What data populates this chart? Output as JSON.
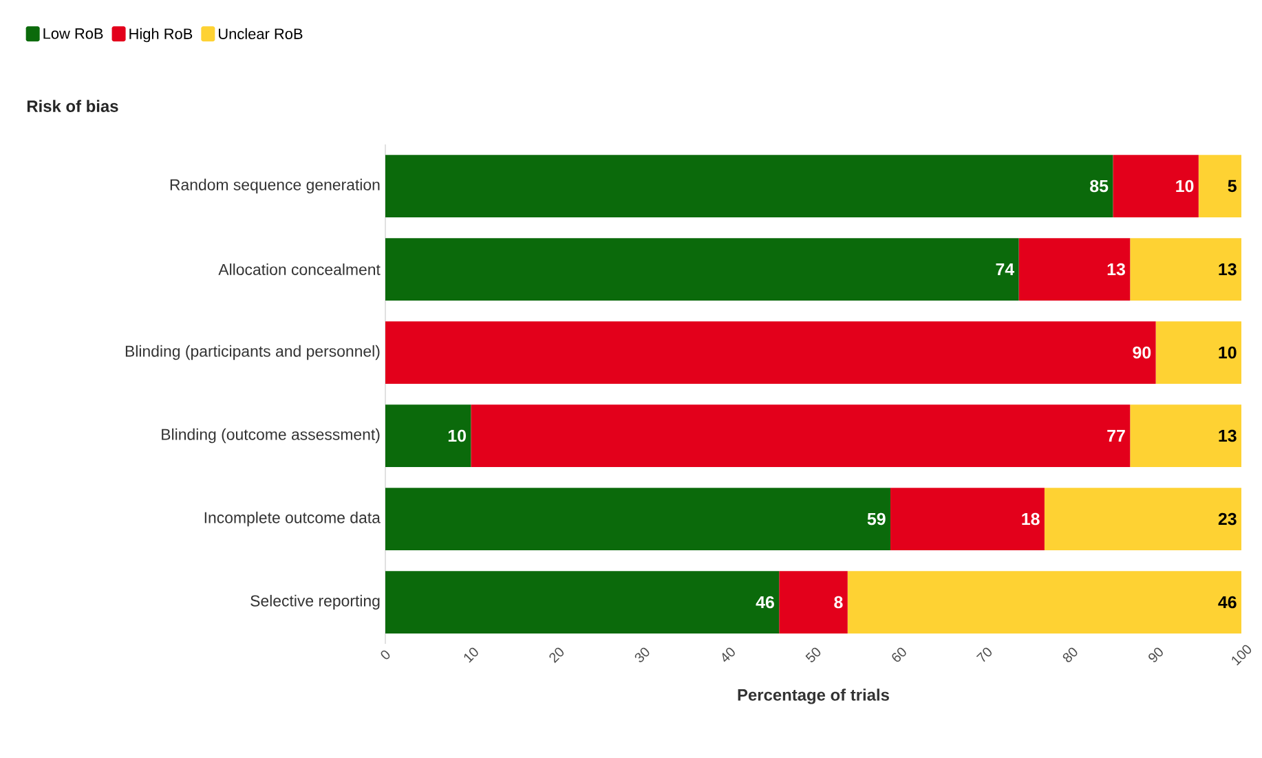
{
  "chart_data": {
    "type": "bar",
    "orientation": "horizontal",
    "stacked": true,
    "title": "Risk of bias",
    "xlabel": "Percentage of trials",
    "categories": [
      "Random sequence generation",
      "Allocation concealment",
      "Blinding (participants and personnel)",
      "Blinding (outcome assessment)",
      "Incomplete outcome data",
      "Selective reporting"
    ],
    "series": [
      {
        "name": "Low RoB",
        "color": "#0b6a0b",
        "values": [
          85,
          74,
          0,
          10,
          59,
          46
        ],
        "value_labels": [
          "85",
          "74",
          null,
          "10",
          "59",
          "46"
        ]
      },
      {
        "name": "High RoB",
        "color": "#e3001b",
        "values": [
          10,
          13,
          90,
          77,
          18,
          8
        ],
        "value_labels": [
          "10",
          "13",
          "90",
          "77",
          "18",
          "8"
        ]
      },
      {
        "name": "Unclear RoB",
        "color": "#fed233",
        "values": [
          5,
          13,
          10,
          13,
          23,
          46
        ],
        "value_labels": [
          "5",
          "13",
          "10",
          "13",
          "23",
          "46"
        ]
      }
    ],
    "xlim": [
      0,
      100
    ],
    "xticks": [
      0,
      10,
      20,
      30,
      40,
      50,
      60,
      70,
      80,
      90,
      100
    ],
    "legend": "top left"
  }
}
